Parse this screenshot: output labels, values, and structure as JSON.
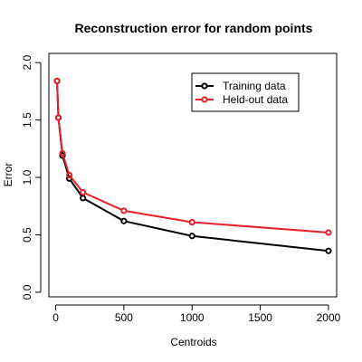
{
  "chart_data": {
    "type": "line",
    "title": "Reconstruction error for random points",
    "xlabel": "Centroids",
    "ylabel": "Error",
    "xlim": [
      -50,
      2060
    ],
    "ylim": [
      -0.04,
      2.08
    ],
    "xticks": [
      0,
      500,
      1000,
      1500,
      2000
    ],
    "yticks": [
      0.0,
      0.5,
      1.0,
      1.5,
      2.0
    ],
    "xtick_labels": [
      "0",
      "500",
      "1000",
      "1500",
      "2000"
    ],
    "ytick_labels": [
      "0.0",
      "0.5",
      "1.0",
      "1.5",
      "2.0"
    ],
    "grid": false,
    "legend_position": "top-right",
    "x": [
      10,
      20,
      50,
      100,
      200,
      500,
      1000,
      2000
    ],
    "series": [
      {
        "name": "Training data",
        "color": "#000000",
        "values": [
          1.84,
          1.52,
          1.19,
          0.99,
          0.82,
          0.62,
          0.49,
          0.36
        ]
      },
      {
        "name": "Held-out data",
        "color": "#e8202a",
        "values": [
          1.84,
          1.52,
          1.21,
          1.02,
          0.87,
          0.71,
          0.61,
          0.52
        ]
      }
    ]
  }
}
